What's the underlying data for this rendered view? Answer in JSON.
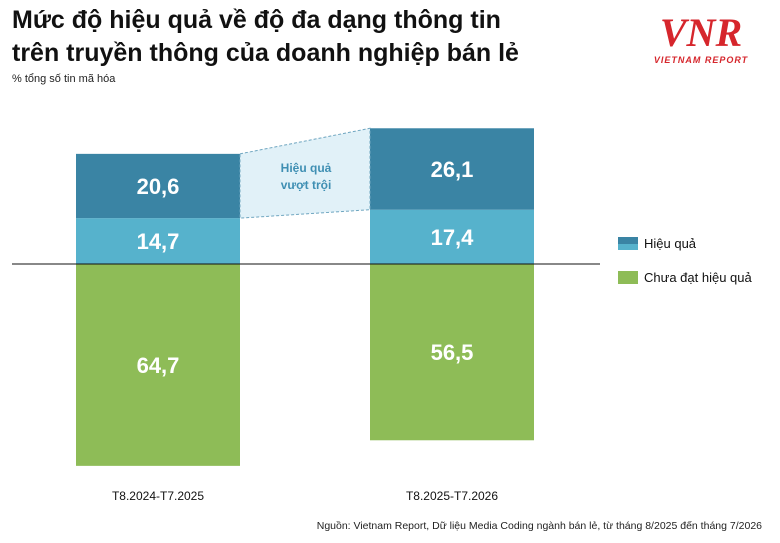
{
  "title_line1": "Mức độ hiệu quả về độ đa dạng thông tin",
  "title_line2": "trên truyền thông của doanh nghiệp bán lẻ",
  "subtitle": "% tổng số tin mã hóa",
  "logo": {
    "letters": "VNR",
    "tagline": "VIETNAM REPORT",
    "color": "#d6262c"
  },
  "source": "Nguồn: Vietnam Report, Dữ liệu Media Coding ngành bán lẻ, từ tháng 8/2025 đến tháng 7/2026",
  "annotation": {
    "line1": "Hiệu quả",
    "line2": "vượt trội"
  },
  "legend": [
    {
      "label": "Hiệu quả",
      "colors": [
        "#3a84a4",
        "#56b2cc"
      ]
    },
    {
      "label": "Chưa đạt hiệu quả",
      "colors": [
        "#8ebc57"
      ]
    }
  ],
  "chart_data": {
    "type": "bar",
    "stacked": "diverging",
    "categories": [
      "T8.2024-T7.2025",
      "T8.2025-T7.2026"
    ],
    "series": [
      {
        "values": [
          20.6,
          26.1
        ],
        "color": "#3a84a4",
        "side": "above",
        "order": 2
      },
      {
        "values": [
          14.7,
          17.4
        ],
        "color": "#56b2cc",
        "side": "above",
        "order": 1
      },
      {
        "values": [
          64.7,
          56.5
        ],
        "color": "#8ebc57",
        "side": "below",
        "order": 1
      }
    ],
    "value_labels": [
      [
        "20,6",
        "26,1"
      ],
      [
        "14,7",
        "17,4"
      ],
      [
        "64,7",
        "56,5"
      ]
    ],
    "ylim": [
      -64.7,
      43.5
    ],
    "legend_position": "right",
    "grid": false
  }
}
